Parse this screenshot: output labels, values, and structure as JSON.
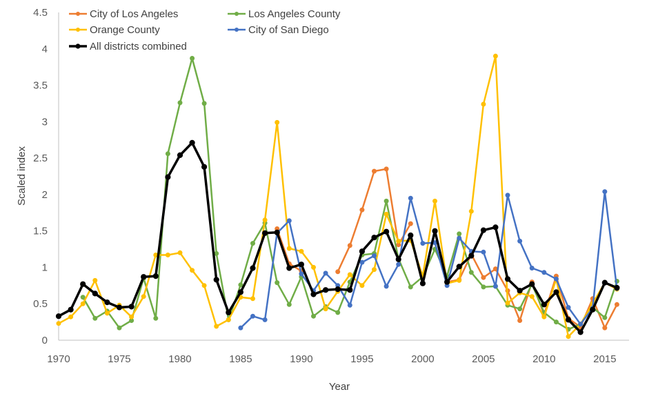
{
  "chart_data": {
    "type": "line",
    "title": "",
    "xlabel": "Year",
    "ylabel": "Scaled index",
    "xlim": [
      1970,
      2017
    ],
    "ylim": [
      0,
      4.5
    ],
    "x_ticks": [
      "1970",
      "1975",
      "1980",
      "1985",
      "1990",
      "1995",
      "2000",
      "2005",
      "2010",
      "2015"
    ],
    "y_ticks": [
      "0",
      "0.5",
      "1",
      "1.5",
      "2",
      "2.5",
      "3",
      "3.5",
      "4",
      "4.5"
    ],
    "grid": false,
    "legend_position": "top-left",
    "series": [
      {
        "name": "City of Los Angeles",
        "color": "#ED7D31",
        "points": [
          [
            1988,
            1.53
          ],
          [
            1989,
            1.05
          ],
          [
            1990,
            0.95
          ],
          [
            1991,
            null
          ],
          [
            1992,
            null
          ],
          [
            1993,
            0.94
          ],
          [
            1994,
            1.3
          ],
          [
            1995,
            1.79
          ],
          [
            1996,
            2.32
          ],
          [
            1997,
            2.35
          ],
          [
            1998,
            1.31
          ],
          [
            1999,
            1.6
          ],
          [
            2000,
            null
          ],
          [
            2001,
            null
          ],
          [
            2002,
            0.8
          ],
          [
            2003,
            0.83
          ],
          [
            2004,
            1.18
          ],
          [
            2005,
            0.86
          ],
          [
            2006,
            0.98
          ],
          [
            2007,
            0.68
          ],
          [
            2008,
            0.27
          ],
          [
            2009,
            0.8
          ],
          [
            2010,
            0.35
          ],
          [
            2011,
            0.88
          ],
          [
            2012,
            0.3
          ],
          [
            2013,
            0.18
          ],
          [
            2014,
            0.57
          ],
          [
            2015,
            0.17
          ],
          [
            2016,
            0.49
          ]
        ]
      },
      {
        "name": "Los Angeles County",
        "color": "#70AD47",
        "points": [
          [
            1972,
            0.59
          ],
          [
            1973,
            0.3
          ],
          [
            1974,
            0.4
          ],
          [
            1975,
            0.17
          ],
          [
            1976,
            0.27
          ],
          [
            1977,
            0.85
          ],
          [
            1978,
            0.3
          ],
          [
            1979,
            2.56
          ],
          [
            1980,
            3.26
          ],
          [
            1981,
            3.87
          ],
          [
            1982,
            3.25
          ],
          [
            1983,
            1.19
          ],
          [
            1984,
            0.28
          ],
          [
            1985,
            0.76
          ],
          [
            1986,
            1.33
          ],
          [
            1987,
            1.61
          ],
          [
            1988,
            0.79
          ],
          [
            1989,
            0.49
          ],
          [
            1990,
            0.87
          ],
          [
            1991,
            0.33
          ],
          [
            1992,
            0.46
          ],
          [
            1993,
            0.38
          ],
          [
            1994,
            0.8
          ],
          [
            1995,
            1.17
          ],
          [
            1996,
            1.19
          ],
          [
            1997,
            1.91
          ],
          [
            1998,
            1.12
          ],
          [
            1999,
            0.73
          ],
          [
            2000,
            0.87
          ],
          [
            2001,
            1.25
          ],
          [
            2002,
            0.88
          ],
          [
            2003,
            1.46
          ],
          [
            2004,
            0.93
          ],
          [
            2005,
            0.73
          ],
          [
            2006,
            0.74
          ],
          [
            2007,
            0.48
          ],
          [
            2008,
            0.43
          ],
          [
            2009,
            0.77
          ],
          [
            2010,
            0.38
          ],
          [
            2011,
            0.25
          ],
          [
            2012,
            0.15
          ],
          [
            2013,
            0.22
          ],
          [
            2014,
            0.45
          ],
          [
            2015,
            0.31
          ],
          [
            2016,
            0.81
          ]
        ]
      },
      {
        "name": "Orange County",
        "color": "#FFC000",
        "points": [
          [
            1970,
            0.23
          ],
          [
            1971,
            0.32
          ],
          [
            1972,
            0.5
          ],
          [
            1973,
            0.82
          ],
          [
            1974,
            0.37
          ],
          [
            1975,
            0.48
          ],
          [
            1976,
            0.32
          ],
          [
            1977,
            0.6
          ],
          [
            1978,
            1.17
          ],
          [
            1979,
            1.17
          ],
          [
            1980,
            1.2
          ],
          [
            1981,
            0.96
          ],
          [
            1982,
            0.75
          ],
          [
            1983,
            0.19
          ],
          [
            1984,
            0.28
          ],
          [
            1985,
            0.59
          ],
          [
            1986,
            0.57
          ],
          [
            1987,
            1.65
          ],
          [
            1988,
            2.99
          ],
          [
            1989,
            1.26
          ],
          [
            1990,
            1.22
          ],
          [
            1991,
            1.0
          ],
          [
            1992,
            0.43
          ],
          [
            1993,
            0.67
          ],
          [
            1994,
            0.9
          ],
          [
            1995,
            0.75
          ],
          [
            1996,
            0.97
          ],
          [
            1997,
            1.73
          ],
          [
            1998,
            1.36
          ],
          [
            1999,
            1.37
          ],
          [
            2000,
            0.88
          ],
          [
            2001,
            1.91
          ],
          [
            2002,
            0.78
          ],
          [
            2003,
            0.82
          ],
          [
            2004,
            1.77
          ],
          [
            2005,
            3.24
          ],
          [
            2006,
            3.9
          ],
          [
            2007,
            0.51
          ],
          [
            2008,
            0.65
          ],
          [
            2009,
            0.6
          ],
          [
            2010,
            0.32
          ],
          [
            2011,
            0.84
          ],
          [
            2012,
            0.05
          ],
          [
            2013,
            0.22
          ],
          [
            2014,
            0.5
          ],
          [
            2015,
            0.79
          ],
          [
            2016,
            0.7
          ]
        ]
      },
      {
        "name": "City of San Diego",
        "color": "#4472C4",
        "points": [
          [
            1985,
            0.17
          ],
          [
            1986,
            0.33
          ],
          [
            1987,
            0.28
          ],
          [
            1988,
            1.47
          ],
          [
            1989,
            1.64
          ],
          [
            1990,
            0.91
          ],
          [
            1991,
            0.68
          ],
          [
            1992,
            0.92
          ],
          [
            1993,
            0.75
          ],
          [
            1994,
            0.48
          ],
          [
            1995,
            1.07
          ],
          [
            1996,
            1.16
          ],
          [
            1997,
            0.74
          ],
          [
            1998,
            1.04
          ],
          [
            1999,
            1.95
          ],
          [
            2000,
            1.33
          ],
          [
            2001,
            1.34
          ],
          [
            2002,
            0.75
          ],
          [
            2003,
            1.4
          ],
          [
            2004,
            1.22
          ],
          [
            2005,
            1.21
          ],
          [
            2006,
            0.74
          ],
          [
            2007,
            1.99
          ],
          [
            2008,
            1.36
          ],
          [
            2009,
            0.99
          ],
          [
            2010,
            0.93
          ],
          [
            2011,
            0.84
          ],
          [
            2012,
            0.45
          ],
          [
            2013,
            0.22
          ],
          [
            2014,
            0.44
          ],
          [
            2015,
            2.04
          ],
          [
            2016,
            0.71
          ]
        ]
      },
      {
        "name": "All districts combined",
        "color": "#000000",
        "points": [
          [
            1970,
            0.33
          ],
          [
            1971,
            0.42
          ],
          [
            1972,
            0.77
          ],
          [
            1973,
            0.64
          ],
          [
            1974,
            0.52
          ],
          [
            1975,
            0.45
          ],
          [
            1976,
            0.46
          ],
          [
            1977,
            0.87
          ],
          [
            1978,
            0.88
          ],
          [
            1979,
            2.24
          ],
          [
            1980,
            2.54
          ],
          [
            1981,
            2.71
          ],
          [
            1982,
            2.38
          ],
          [
            1983,
            0.83
          ],
          [
            1984,
            0.38
          ],
          [
            1985,
            0.66
          ],
          [
            1986,
            0.99
          ],
          [
            1987,
            1.47
          ],
          [
            1988,
            1.48
          ],
          [
            1989,
            0.99
          ],
          [
            1990,
            1.04
          ],
          [
            1991,
            0.63
          ],
          [
            1992,
            0.69
          ],
          [
            1993,
            0.7
          ],
          [
            1994,
            0.69
          ],
          [
            1995,
            1.22
          ],
          [
            1996,
            1.41
          ],
          [
            1997,
            1.49
          ],
          [
            1998,
            1.11
          ],
          [
            1999,
            1.44
          ],
          [
            2000,
            0.78
          ],
          [
            2001,
            1.5
          ],
          [
            2002,
            0.8
          ],
          [
            2003,
            1.01
          ],
          [
            2004,
            1.16
          ],
          [
            2005,
            1.51
          ],
          [
            2006,
            1.55
          ],
          [
            2007,
            0.84
          ],
          [
            2008,
            0.68
          ],
          [
            2009,
            0.77
          ],
          [
            2010,
            0.49
          ],
          [
            2011,
            0.66
          ],
          [
            2012,
            0.28
          ],
          [
            2013,
            0.11
          ],
          [
            2014,
            0.42
          ],
          [
            2015,
            0.79
          ],
          [
            2016,
            0.72
          ]
        ]
      }
    ]
  }
}
